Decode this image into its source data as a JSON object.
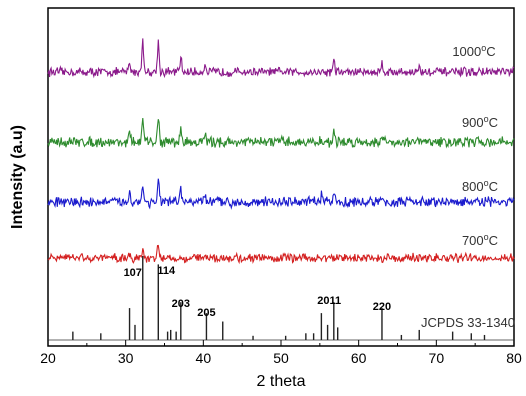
{
  "chart_data": {
    "type": "line",
    "xlabel": "2 theta",
    "ylabel": "Intensity (a.u)",
    "xlim": [
      20,
      80
    ],
    "xticks": [
      20,
      30,
      40,
      50,
      60,
      70,
      80
    ],
    "series": [
      {
        "name": "1000°C",
        "label_main": "1000",
        "label_sup": "o",
        "label_unit": "C",
        "color": "#8b1a8b",
        "peaks": [
          [
            30.5,
            9
          ],
          [
            32.2,
            32
          ],
          [
            34.2,
            30
          ],
          [
            37.1,
            14
          ],
          [
            40.2,
            7
          ],
          [
            56.8,
            13
          ],
          [
            63.0,
            9
          ],
          [
            67.8,
            5
          ]
        ],
        "base": 9,
        "noise": 3.5
      },
      {
        "name": "900°C",
        "label_main": "900",
        "label_sup": "o",
        "label_unit": "C",
        "color": "#2e8b2e",
        "peaks": [
          [
            30.5,
            9
          ],
          [
            32.2,
            22
          ],
          [
            34.2,
            24
          ],
          [
            37.1,
            12
          ],
          [
            40.2,
            8
          ],
          [
            56.8,
            10
          ],
          [
            63.0,
            7
          ]
        ],
        "base": 10,
        "noise": 4
      },
      {
        "name": "800°C",
        "label_main": "800",
        "label_sup": "o",
        "label_unit": "C",
        "color": "#1a1acd",
        "peaks": [
          [
            30.5,
            10
          ],
          [
            32.2,
            16
          ],
          [
            34.2,
            22
          ],
          [
            37.1,
            12
          ],
          [
            40.2,
            7
          ],
          [
            55.2,
            7
          ],
          [
            56.8,
            9
          ]
        ],
        "base": 10,
        "noise": 4
      },
      {
        "name": "700°C",
        "label_main": "700",
        "label_sup": "o",
        "label_unit": "C",
        "color": "#d42020",
        "peaks": [
          [
            32.2,
            9
          ],
          [
            34.2,
            11
          ],
          [
            30.5,
            5
          ]
        ],
        "base": 10,
        "noise": 3.5
      }
    ],
    "reference": {
      "name": "JCPDS 33-1340",
      "sticks": [
        [
          23.2,
          0.1
        ],
        [
          26.8,
          0.08
        ],
        [
          30.5,
          0.38
        ],
        [
          31.2,
          0.18
        ],
        [
          32.2,
          1.0
        ],
        [
          34.2,
          0.9
        ],
        [
          35.4,
          0.1
        ],
        [
          35.8,
          0.12
        ],
        [
          36.5,
          0.1
        ],
        [
          37.1,
          0.45
        ],
        [
          40.4,
          0.32
        ],
        [
          42.5,
          0.22
        ],
        [
          46.4,
          0.05
        ],
        [
          50.6,
          0.05
        ],
        [
          53.2,
          0.08
        ],
        [
          54.2,
          0.08
        ],
        [
          55.2,
          0.32
        ],
        [
          56.0,
          0.18
        ],
        [
          56.8,
          0.45
        ],
        [
          57.3,
          0.15
        ],
        [
          63.0,
          0.38
        ],
        [
          65.5,
          0.06
        ],
        [
          67.8,
          0.12
        ],
        [
          72.1,
          0.1
        ],
        [
          74.5,
          0.08
        ],
        [
          76.2,
          0.06
        ]
      ],
      "peak_labels": [
        {
          "x": 32.2,
          "text": "107"
        },
        {
          "x": 34.2,
          "text": "114"
        },
        {
          "x": 37.1,
          "text": "203"
        },
        {
          "x": 40.4,
          "text": "205"
        },
        {
          "x": 56.2,
          "text": "2011"
        },
        {
          "x": 63.0,
          "text": "220"
        }
      ]
    }
  }
}
